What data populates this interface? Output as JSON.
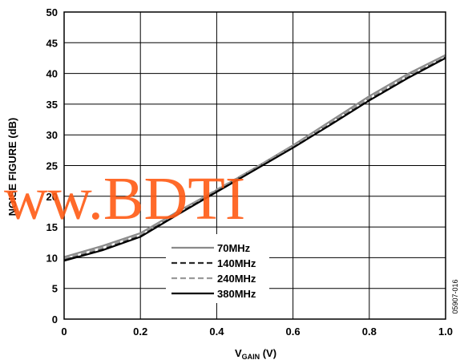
{
  "chart_data": {
    "type": "line",
    "xlabel_main": "V",
    "xlabel_sub": "GAIN",
    "xlabel_unit": " (V)",
    "ylabel": "NOISE FIGURE (dB)",
    "xlim": [
      0,
      1.0
    ],
    "ylim": [
      0,
      50
    ],
    "x_ticks": [
      "0",
      "0.2",
      "0.4",
      "0.6",
      "0.8",
      "1.0"
    ],
    "y_ticks": [
      "0",
      "5",
      "10",
      "15",
      "20",
      "25",
      "30",
      "35",
      "40",
      "45",
      "50"
    ],
    "grid": true,
    "legend_position": "lower-center",
    "x": [
      0,
      0.1,
      0.2,
      0.3,
      0.4,
      0.5,
      0.6,
      0.7,
      0.8,
      0.9,
      1.0
    ],
    "series": [
      {
        "name": "70MHz",
        "color": "#8a8a8a",
        "dash": "solid",
        "values": [
          10.1,
          11.9,
          14.0,
          17.6,
          21.0,
          24.6,
          28.3,
          32.3,
          36.3,
          39.9,
          43.0
        ]
      },
      {
        "name": "140MHz",
        "color": "#2a2a2a",
        "dash": "dashed",
        "values": [
          9.7,
          11.4,
          13.6,
          17.3,
          20.9,
          24.5,
          28.1,
          32.0,
          35.9,
          39.5,
          42.7
        ]
      },
      {
        "name": "240MHz",
        "color": "#9a9a9a",
        "dash": "dashed",
        "values": [
          9.9,
          11.6,
          13.8,
          17.5,
          21.1,
          24.6,
          28.2,
          32.1,
          36.0,
          39.6,
          42.9
        ]
      },
      {
        "name": "380MHz",
        "color": "#000000",
        "dash": "solid",
        "values": [
          9.5,
          11.2,
          13.4,
          17.1,
          20.7,
          24.3,
          27.9,
          31.7,
          35.6,
          39.2,
          42.5
        ]
      }
    ]
  },
  "watermark": "ww.BDTI",
  "figure_code": "05907-016"
}
